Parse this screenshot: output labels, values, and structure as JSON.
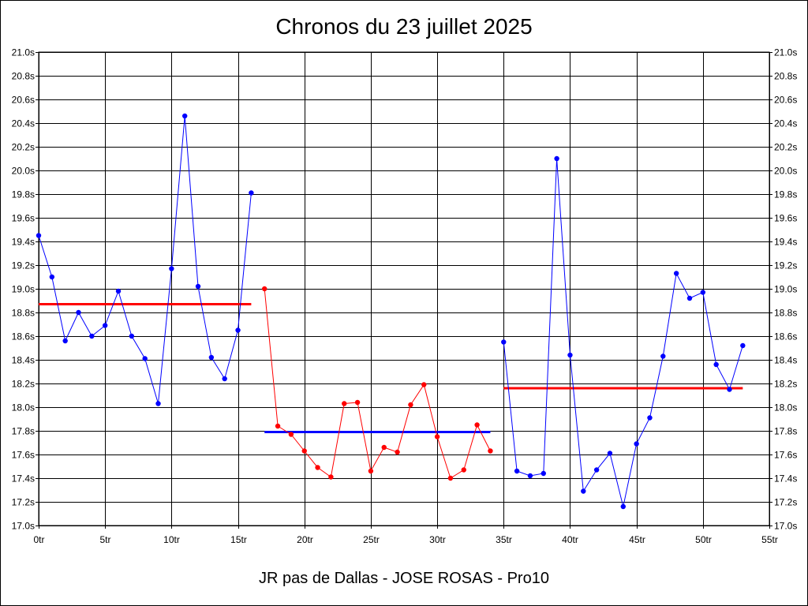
{
  "title": "Chronos du 23 juillet 2025",
  "footer": "JR pas de Dallas - JOSE ROSAS - Pro10",
  "chart_data": {
    "type": "line",
    "title": "Chronos du 23 juillet 2025",
    "xlabel": "",
    "ylabel": "",
    "xlim": [
      0,
      55
    ],
    "ylim": [
      17.0,
      21.0
    ],
    "grid": true,
    "x_ticks": [
      0,
      5,
      10,
      15,
      20,
      25,
      30,
      35,
      40,
      45,
      50,
      55
    ],
    "x_tick_labels": [
      "0tr",
      "5tr",
      "10tr",
      "15tr",
      "20tr",
      "25tr",
      "30tr",
      "35tr",
      "40tr",
      "45tr",
      "50tr",
      "55tr"
    ],
    "y_ticks": [
      17.0,
      17.2,
      17.4,
      17.6,
      17.8,
      18.0,
      18.2,
      18.4,
      18.6,
      18.8,
      19.0,
      19.2,
      19.4,
      19.6,
      19.8,
      20.0,
      20.2,
      20.4,
      20.6,
      20.8,
      21.0
    ],
    "y_tick_labels": [
      "17.0s",
      "17.2s",
      "17.4s",
      "17.6s",
      "17.8s",
      "18.0s",
      "18.2s",
      "18.4s",
      "18.6s",
      "18.8s",
      "19.0s",
      "19.2s",
      "19.4s",
      "19.6s",
      "19.8s",
      "20.0s",
      "20.2s",
      "20.4s",
      "20.6s",
      "20.8s",
      "21.0s"
    ],
    "series": [
      {
        "color": "#0000ff",
        "x": [
          0,
          1,
          2,
          3,
          4,
          5,
          6,
          7,
          8,
          9,
          10,
          11,
          12,
          13,
          14,
          15,
          16
        ],
        "values": [
          19.45,
          19.1,
          18.56,
          18.8,
          18.6,
          18.69,
          18.98,
          18.6,
          18.41,
          18.03,
          19.17,
          20.46,
          19.02,
          18.42,
          18.24,
          18.65,
          19.81
        ]
      },
      {
        "color": "#ff0000",
        "x": [
          17,
          18,
          19,
          20,
          21,
          22,
          23,
          24,
          25,
          26,
          27,
          28,
          29,
          30,
          31,
          32,
          33,
          34
        ],
        "values": [
          19.0,
          17.84,
          17.77,
          17.63,
          17.49,
          17.41,
          18.03,
          18.04,
          17.46,
          17.66,
          17.62,
          18.02,
          18.19,
          17.75,
          17.4,
          17.47,
          17.85,
          17.63
        ]
      },
      {
        "color": "#0000ff",
        "x": [
          35,
          36,
          37,
          38,
          39,
          40,
          41,
          42,
          43,
          44,
          45,
          46,
          47,
          48,
          49,
          50,
          51,
          52,
          53
        ],
        "values": [
          18.55,
          17.46,
          17.42,
          17.44,
          20.1,
          18.44,
          17.29,
          17.47,
          17.61,
          17.16,
          17.69,
          17.91,
          18.43,
          19.13,
          18.92,
          18.97,
          18.36,
          18.15,
          18.52
        ]
      }
    ],
    "averages": [
      {
        "color": "#ff0000",
        "x": [
          0,
          16
        ],
        "value": 18.87
      },
      {
        "color": "#0000ff",
        "x": [
          17,
          34
        ],
        "value": 17.79
      },
      {
        "color": "#ff0000",
        "x": [
          35,
          53
        ],
        "value": 18.16
      }
    ]
  }
}
